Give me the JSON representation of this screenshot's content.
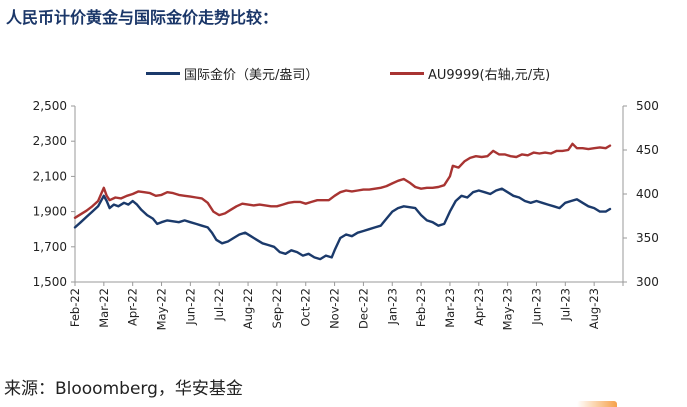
{
  "title": "人民币计价黄金与国际金价走势比较：",
  "source": "来源：Blooomberg，华安基金",
  "chart_data": {
    "type": "line",
    "x_labels": [
      "Feb-22",
      "Mar-22",
      "Apr-22",
      "May-22",
      "Jun-22",
      "Jul-22",
      "Aug-22",
      "Sep-22",
      "Oct-22",
      "Nov-22",
      "Dec-22",
      "Jan-23",
      "Feb-23",
      "Mar-23",
      "Apr-23",
      "May-23",
      "Jun-23",
      "Jul-23",
      "Aug-23"
    ],
    "left_axis": {
      "min": 1500,
      "max": 2500,
      "ticks": [
        "1,500",
        "1,700",
        "1,900",
        "2,100",
        "2,300",
        "2,500"
      ]
    },
    "right_axis": {
      "min": 300,
      "max": 500,
      "ticks": [
        "300",
        "350",
        "400",
        "450",
        "500"
      ]
    },
    "series": [
      {
        "name": "国际金价（美元/盎司）",
        "axis": "left",
        "color": "#1b3a6b",
        "points": [
          [
            0,
            1810
          ],
          [
            0.2,
            1840
          ],
          [
            0.4,
            1870
          ],
          [
            0.6,
            1900
          ],
          [
            0.8,
            1930
          ],
          [
            1.0,
            1990
          ],
          [
            1.1,
            1960
          ],
          [
            1.2,
            1920
          ],
          [
            1.35,
            1940
          ],
          [
            1.5,
            1930
          ],
          [
            1.7,
            1950
          ],
          [
            1.85,
            1940
          ],
          [
            2.0,
            1960
          ],
          [
            2.15,
            1940
          ],
          [
            2.3,
            1910
          ],
          [
            2.5,
            1880
          ],
          [
            2.7,
            1860
          ],
          [
            2.85,
            1830
          ],
          [
            3.0,
            1840
          ],
          [
            3.2,
            1850
          ],
          [
            3.4,
            1845
          ],
          [
            3.6,
            1840
          ],
          [
            3.8,
            1850
          ],
          [
            4.0,
            1840
          ],
          [
            4.2,
            1830
          ],
          [
            4.4,
            1820
          ],
          [
            4.6,
            1810
          ],
          [
            4.75,
            1780
          ],
          [
            4.9,
            1740
          ],
          [
            5.1,
            1720
          ],
          [
            5.3,
            1730
          ],
          [
            5.5,
            1750
          ],
          [
            5.7,
            1770
          ],
          [
            5.9,
            1780
          ],
          [
            6.1,
            1760
          ],
          [
            6.3,
            1740
          ],
          [
            6.5,
            1720
          ],
          [
            6.7,
            1710
          ],
          [
            6.9,
            1700
          ],
          [
            7.1,
            1670
          ],
          [
            7.3,
            1660
          ],
          [
            7.5,
            1680
          ],
          [
            7.7,
            1670
          ],
          [
            7.9,
            1650
          ],
          [
            8.1,
            1660
          ],
          [
            8.3,
            1640
          ],
          [
            8.5,
            1630
          ],
          [
            8.7,
            1650
          ],
          [
            8.9,
            1640
          ],
          [
            9.0,
            1680
          ],
          [
            9.2,
            1750
          ],
          [
            9.4,
            1770
          ],
          [
            9.6,
            1760
          ],
          [
            9.8,
            1780
          ],
          [
            10.0,
            1790
          ],
          [
            10.2,
            1800
          ],
          [
            10.4,
            1810
          ],
          [
            10.6,
            1820
          ],
          [
            10.8,
            1860
          ],
          [
            11.0,
            1900
          ],
          [
            11.2,
            1920
          ],
          [
            11.4,
            1930
          ],
          [
            11.6,
            1925
          ],
          [
            11.8,
            1920
          ],
          [
            12.0,
            1880
          ],
          [
            12.2,
            1850
          ],
          [
            12.4,
            1840
          ],
          [
            12.6,
            1820
          ],
          [
            12.8,
            1830
          ],
          [
            13.0,
            1900
          ],
          [
            13.2,
            1960
          ],
          [
            13.4,
            1990
          ],
          [
            13.6,
            1980
          ],
          [
            13.8,
            2010
          ],
          [
            14.0,
            2020
          ],
          [
            14.2,
            2010
          ],
          [
            14.4,
            2000
          ],
          [
            14.6,
            2020
          ],
          [
            14.8,
            2030
          ],
          [
            15.0,
            2010
          ],
          [
            15.2,
            1990
          ],
          [
            15.4,
            1980
          ],
          [
            15.6,
            1960
          ],
          [
            15.8,
            1950
          ],
          [
            16.0,
            1960
          ],
          [
            16.2,
            1950
          ],
          [
            16.4,
            1940
          ],
          [
            16.6,
            1930
          ],
          [
            16.8,
            1920
          ],
          [
            17.0,
            1950
          ],
          [
            17.2,
            1960
          ],
          [
            17.4,
            1970
          ],
          [
            17.6,
            1950
          ],
          [
            17.8,
            1930
          ],
          [
            18.0,
            1920
          ],
          [
            18.2,
            1900
          ],
          [
            18.4,
            1900
          ],
          [
            18.55,
            1915
          ]
        ]
      },
      {
        "name": "AU9999(右轴,元/克)",
        "axis": "right",
        "color": "#a83432",
        "points": [
          [
            0,
            373
          ],
          [
            0.2,
            377
          ],
          [
            0.4,
            381
          ],
          [
            0.6,
            386
          ],
          [
            0.8,
            392
          ],
          [
            1.0,
            407
          ],
          [
            1.1,
            398
          ],
          [
            1.2,
            393
          ],
          [
            1.4,
            396
          ],
          [
            1.6,
            395
          ],
          [
            1.8,
            398
          ],
          [
            2.0,
            400
          ],
          [
            2.2,
            403
          ],
          [
            2.4,
            402
          ],
          [
            2.6,
            401
          ],
          [
            2.8,
            398
          ],
          [
            3.0,
            399
          ],
          [
            3.2,
            402
          ],
          [
            3.4,
            401
          ],
          [
            3.6,
            399
          ],
          [
            3.8,
            398
          ],
          [
            4.0,
            397
          ],
          [
            4.2,
            396
          ],
          [
            4.4,
            395
          ],
          [
            4.6,
            390
          ],
          [
            4.8,
            380
          ],
          [
            5.0,
            376
          ],
          [
            5.2,
            378
          ],
          [
            5.4,
            382
          ],
          [
            5.6,
            386
          ],
          [
            5.8,
            389
          ],
          [
            6.0,
            388
          ],
          [
            6.2,
            387
          ],
          [
            6.4,
            388
          ],
          [
            6.6,
            387
          ],
          [
            6.8,
            386
          ],
          [
            7.0,
            386
          ],
          [
            7.2,
            388
          ],
          [
            7.4,
            390
          ],
          [
            7.6,
            391
          ],
          [
            7.8,
            391
          ],
          [
            8.0,
            389
          ],
          [
            8.2,
            391
          ],
          [
            8.4,
            393
          ],
          [
            8.6,
            393
          ],
          [
            8.8,
            393
          ],
          [
            9.0,
            398
          ],
          [
            9.2,
            402
          ],
          [
            9.4,
            404
          ],
          [
            9.6,
            403
          ],
          [
            9.8,
            404
          ],
          [
            10.0,
            405
          ],
          [
            10.2,
            405
          ],
          [
            10.4,
            406
          ],
          [
            10.6,
            407
          ],
          [
            10.8,
            409
          ],
          [
            11.0,
            412
          ],
          [
            11.2,
            415
          ],
          [
            11.4,
            417
          ],
          [
            11.6,
            413
          ],
          [
            11.8,
            408
          ],
          [
            12.0,
            406
          ],
          [
            12.2,
            407
          ],
          [
            12.4,
            407
          ],
          [
            12.6,
            408
          ],
          [
            12.8,
            410
          ],
          [
            13.0,
            420
          ],
          [
            13.1,
            432
          ],
          [
            13.3,
            430
          ],
          [
            13.5,
            437
          ],
          [
            13.7,
            441
          ],
          [
            13.9,
            443
          ],
          [
            14.1,
            442
          ],
          [
            14.3,
            443
          ],
          [
            14.5,
            449
          ],
          [
            14.7,
            445
          ],
          [
            14.9,
            445
          ],
          [
            15.1,
            443
          ],
          [
            15.3,
            442
          ],
          [
            15.5,
            445
          ],
          [
            15.7,
            444
          ],
          [
            15.9,
            447
          ],
          [
            16.1,
            446
          ],
          [
            16.3,
            447
          ],
          [
            16.5,
            446
          ],
          [
            16.7,
            449
          ],
          [
            16.9,
            449
          ],
          [
            17.1,
            450
          ],
          [
            17.25,
            457
          ],
          [
            17.4,
            452
          ],
          [
            17.6,
            452
          ],
          [
            17.8,
            451
          ],
          [
            18.0,
            452
          ],
          [
            18.2,
            453
          ],
          [
            18.4,
            452
          ],
          [
            18.55,
            455
          ]
        ]
      }
    ]
  }
}
